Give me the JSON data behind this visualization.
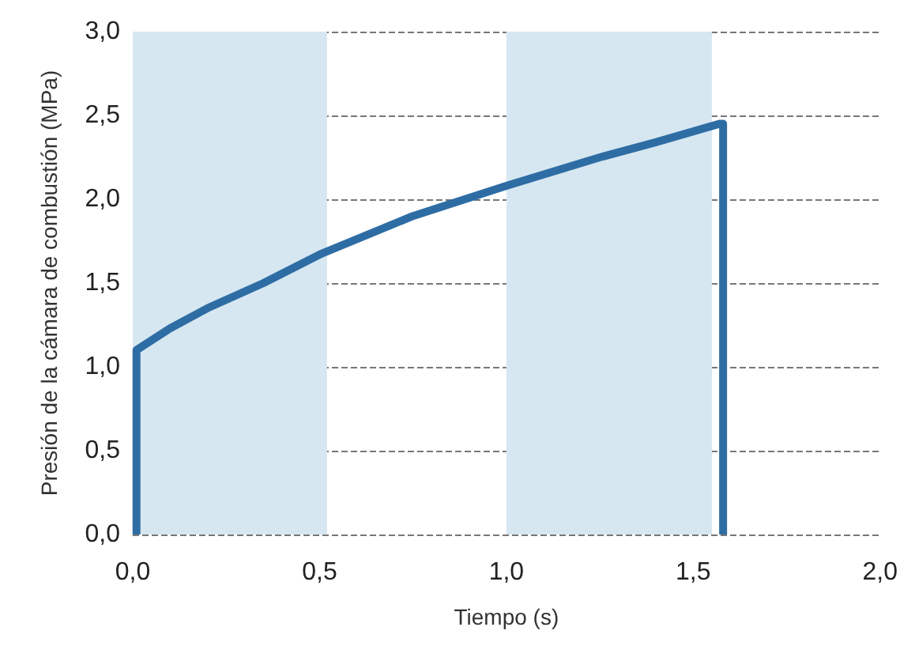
{
  "chart_data": {
    "type": "line",
    "xlabel": "Tiempo (s)",
    "ylabel": "Presión de la cámara de combustión (MPa)",
    "series": [
      {
        "color": "#2e6da4",
        "x": [
          0.01,
          0.01,
          0.1,
          0.2,
          0.35,
          0.5,
          0.75,
          1.0,
          1.25,
          1.4,
          1.57,
          1.58,
          1.58
        ],
        "values": [
          0,
          1.1,
          1.23,
          1.35,
          1.5,
          1.67,
          1.9,
          2.08,
          2.25,
          2.34,
          2.45,
          2.45,
          0
        ]
      }
    ],
    "xlim": [
      0,
      2
    ],
    "xticks": [
      {
        "value": 0,
        "label": "0,0"
      },
      {
        "value": 0.5,
        "label": "0,5"
      },
      {
        "value": 1,
        "label": "1,0"
      },
      {
        "value": 1.5,
        "label": "1,5"
      },
      {
        "value": 2,
        "label": "2,0"
      }
    ],
    "ylim": [
      0,
      3
    ],
    "yticks": [
      {
        "value": 0,
        "label": "0,0"
      },
      {
        "value": 0.5,
        "label": "0,5"
      },
      {
        "value": 1,
        "label": "1,0"
      },
      {
        "value": 1.5,
        "label": "1,5"
      },
      {
        "value": 2,
        "label": "2,0"
      },
      {
        "value": 2.5,
        "label": "2,5"
      },
      {
        "value": 3,
        "label": "3,0"
      }
    ],
    "bands": [
      {
        "axis": "x",
        "from": 0,
        "to": 0.52,
        "color": "#d6e7f1"
      },
      {
        "axis": "x",
        "from": 1.0,
        "to": 1.55,
        "color": "#d6e7f1"
      }
    ],
    "grid": "y",
    "line_style": "solid"
  }
}
